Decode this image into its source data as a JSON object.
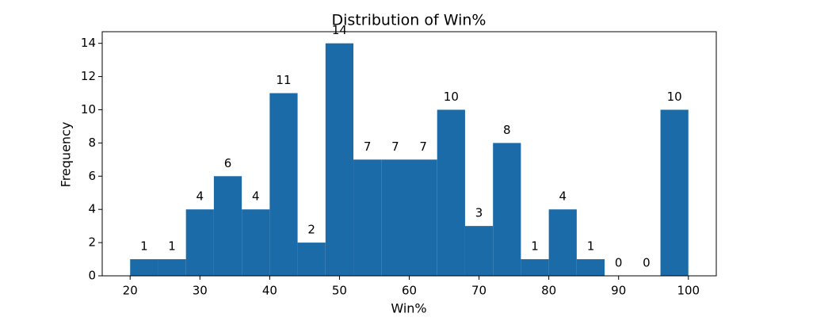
{
  "chart_data": {
    "type": "histogram",
    "title": "Distribution of Win%",
    "x_label": "Win%",
    "y_label": "Frequency",
    "bins": [
      20,
      24,
      28,
      32,
      36,
      40,
      44,
      48,
      52,
      56,
      60,
      64,
      68,
      72,
      76,
      80,
      84,
      88,
      92,
      96,
      100
    ],
    "counts": [
      1,
      1,
      4,
      6,
      4,
      11,
      2,
      14,
      7,
      7,
      7,
      10,
      3,
      8,
      1,
      4,
      1,
      0,
      0,
      10
    ],
    "color": "#1c6ba9",
    "xlim": [
      16,
      104
    ],
    "xticks": [
      20,
      30,
      40,
      50,
      60,
      70,
      80,
      90,
      100
    ],
    "ylim": [
      0,
      14.7
    ],
    "yticks": [
      0,
      2,
      4,
      6,
      8,
      10,
      12,
      14
    ],
    "grid": false
  }
}
